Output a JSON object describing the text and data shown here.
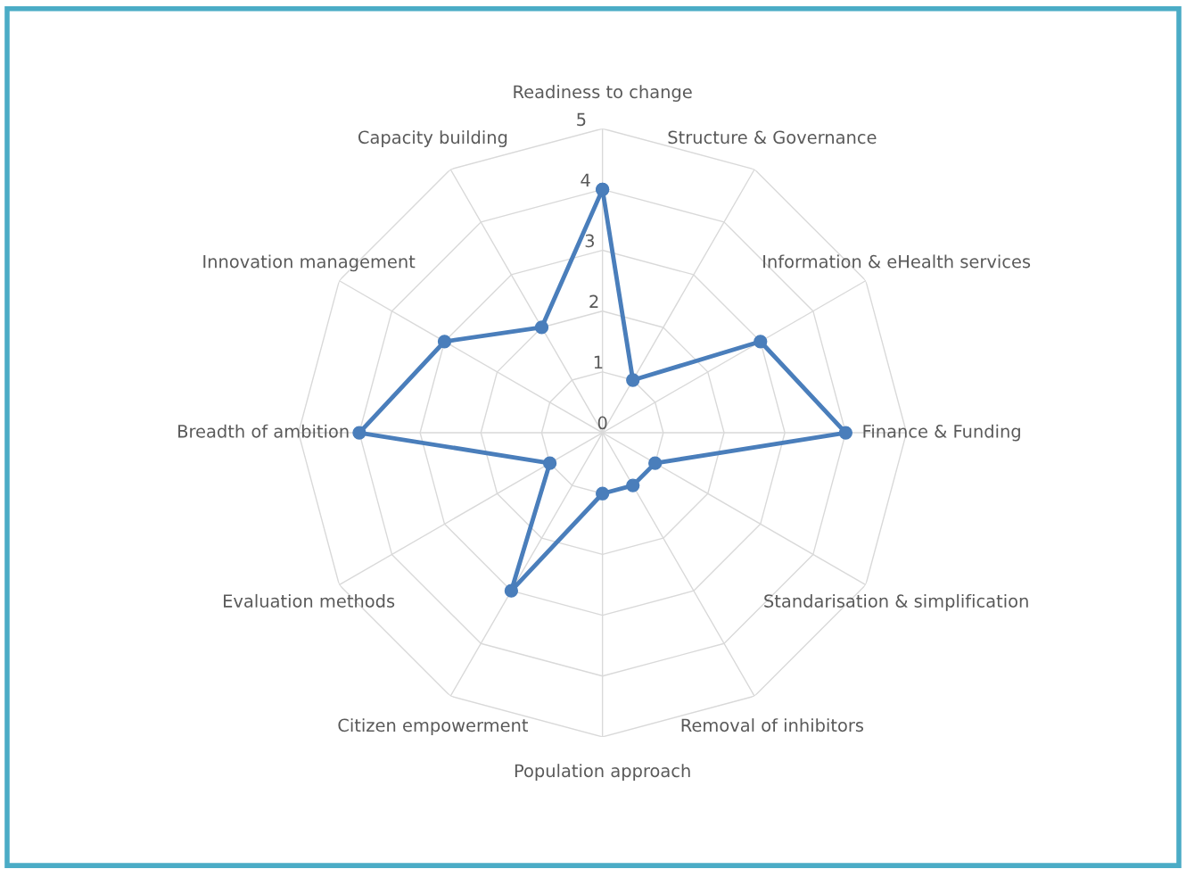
{
  "chart_data": {
    "type": "radar",
    "categories": [
      "Readiness to change",
      "Structure & Governance",
      "Information & eHealth services",
      "Finance & Funding",
      "Standarisation & simplification",
      "Removal of inhibitors",
      "Population approach",
      "Citizen empowerment",
      "Evaluation methods",
      "Breadth of ambition",
      "Innovation management",
      "Capacity building"
    ],
    "series": [
      {
        "color": "#4a7ebb",
        "values": [
          4,
          1,
          3,
          4,
          1,
          1,
          1,
          3,
          1,
          4,
          3,
          2
        ]
      }
    ],
    "ylim": [
      0,
      5
    ],
    "yticks": [
      0,
      1,
      2,
      3,
      4,
      5
    ],
    "grid": true,
    "marker": "circle",
    "line_style": "solid"
  }
}
